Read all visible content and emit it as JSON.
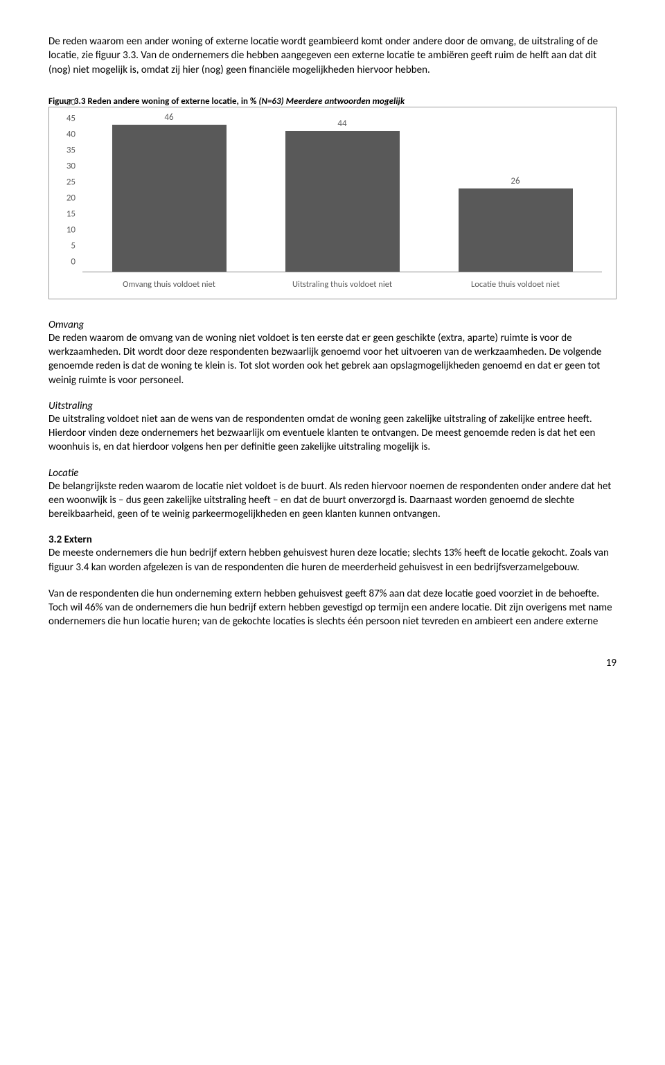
{
  "intro": {
    "p1": "De reden waarom een ander woning of externe locatie wordt geambieerd komt onder andere door de omvang, de uitstraling of de locatie, zie figuur 3.3. Van de ondernemers die hebben aangegeven een externe locatie te ambiëren geeft ruim de helft aan dat dit (nog) niet mogelijk is, omdat zij hier (nog) geen financiële mogelijkheden hiervoor hebben."
  },
  "figure": {
    "caption_bold": "Figuur 3.3 Reden andere woning of externe locatie, in % ",
    "caption_italic": "(N=63) Meerdere antwoorden mogelijk",
    "chart": {
      "type": "bar",
      "ylim": [
        0,
        50
      ],
      "ytick_step": 5,
      "background_color": "#ffffff",
      "axis_text_color": "#595959",
      "bar_color": "#595959",
      "bar_width_pct": 22,
      "categories": [
        "Omvang thuis voldoet niet",
        "Uitstraling thuis voldoet niet",
        "Locatie thuis voldoet niet"
      ],
      "values": [
        46,
        44,
        26
      ]
    }
  },
  "omvang": {
    "heading": "Omvang",
    "text": "De reden waarom de omvang van de woning niet voldoet is ten eerste dat er geen geschikte (extra, aparte) ruimte is voor de werkzaamheden. Dit wordt door deze respondenten bezwaarlijk genoemd voor het uitvoeren van de werkzaamheden. De volgende genoemde reden is dat de woning te klein is. Tot slot worden ook het gebrek aan opslagmogelijkheden genoemd en dat er geen tot weinig ruimte is voor personeel."
  },
  "uitstraling": {
    "heading": "Uitstraling",
    "text": "De uitstraling voldoet niet aan de wens van de respondenten omdat de woning geen zakelijke uitstraling of zakelijke entree heeft. Hierdoor vinden deze ondernemers het bezwaarlijk om eventuele klanten te ontvangen. De meest genoemde reden is dat het een woonhuis is, en dat hierdoor volgens hen per definitie geen zakelijke uitstraling mogelijk is."
  },
  "locatie": {
    "heading": "Locatie",
    "text": "De belangrijkste reden waarom de locatie niet voldoet is de buurt. Als reden hiervoor noemen de respondenten onder andere dat het een woonwijk is – dus geen zakelijke uitstraling heeft – en dat de buurt onverzorgd is. Daarnaast worden genoemd de slechte bereikbaarheid, geen of te weinig parkeermogelijkheden en geen klanten kunnen ontvangen."
  },
  "extern": {
    "heading": "3.2      Extern",
    "p1": "De meeste ondernemers die hun bedrijf extern hebben gehuisvest huren deze locatie; slechts 13% heeft de locatie gekocht. Zoals van figuur 3.4 kan worden afgelezen is van de respondenten die huren de meerderheid gehuisvest in een bedrijfsverzamelgebouw.",
    "p2": "Van de respondenten die hun onderneming extern hebben gehuisvest geeft 87% aan dat deze locatie goed voorziet in de behoefte. Toch wil 46% van de ondernemers die hun bedrijf extern hebben gevestigd op termijn een andere locatie. Dit zijn overigens met name ondernemers die hun locatie huren; van de gekochte locaties is slechts één persoon niet tevreden en ambieert een andere externe"
  },
  "page_number": "19"
}
